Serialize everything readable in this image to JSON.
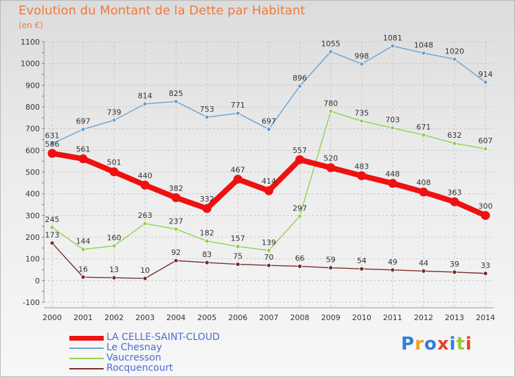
{
  "header": {
    "title": "Evolution du Montant de la Dette par Habitant",
    "subtitle": "(en €)"
  },
  "logo": {
    "text": "Proxiti",
    "colors": [
      "#2f7fd6",
      "#f0a21c",
      "#2f7fd6",
      "#e8402f",
      "#2f7fd6",
      "#9bc83c",
      "#e8402f"
    ]
  },
  "chart_data": {
    "type": "line",
    "x": [
      "2000",
      "2001",
      "2002",
      "2003",
      "2004",
      "2005",
      "2006",
      "2007",
      "2008",
      "2009",
      "2010",
      "2011",
      "2012",
      "2013",
      "2014"
    ],
    "ylim": [
      -100,
      1100
    ],
    "yticks": [
      -100,
      0,
      100,
      200,
      300,
      400,
      500,
      600,
      700,
      800,
      900,
      1000,
      1100
    ],
    "grid": true,
    "legend_position": "bottom-left",
    "series": [
      {
        "name": "Le Chesnay",
        "color": "#6aa0d2",
        "values": [
          631,
          697,
          739,
          814,
          825,
          753,
          771,
          697,
          896,
          1055,
          998,
          1081,
          1048,
          1020,
          914
        ],
        "labels": [
          "631",
          "697",
          "739",
          "814",
          "825",
          "753",
          "771",
          "697",
          "896",
          "1055",
          "998",
          "1081",
          "1048",
          "1020",
          "914"
        ]
      },
      {
        "name": "Vaucresson",
        "color": "#8fd14f",
        "values": [
          245,
          144,
          160,
          263,
          237,
          182,
          157,
          139,
          297,
          780,
          735,
          703,
          671,
          632,
          607
        ],
        "labels": [
          "245",
          "144",
          "160",
          "263",
          "237",
          "182",
          "157",
          "139",
          "297",
          "780",
          "735",
          "703",
          "671",
          "632",
          "607"
        ]
      },
      {
        "name": "Rocquencourt",
        "color": "#7a2a2a",
        "values": [
          173,
          16,
          13,
          10,
          92,
          83,
          75,
          70,
          66,
          59,
          54,
          49,
          44,
          39,
          33
        ],
        "labels": [
          "173",
          "16",
          "13",
          "10",
          "92",
          "83",
          "75",
          "70",
          "66",
          "59",
          "54",
          "49",
          "44",
          "39",
          "33"
        ]
      },
      {
        "name": "LA CELLE-SAINT-CLOUD",
        "color": "#ee1111",
        "highlight": true,
        "values": [
          586,
          561,
          501,
          440,
          382,
          332,
          467,
          414,
          557,
          520,
          483,
          448,
          408,
          363,
          300
        ],
        "labels": [
          "586",
          "561",
          "501",
          "440",
          "382",
          "332",
          "467",
          "414",
          "557",
          "520",
          "483",
          "448",
          "408",
          "363",
          "300"
        ]
      }
    ],
    "legend": [
      "LA CELLE-SAINT-CLOUD",
      "Le Chesnay",
      "Vaucresson",
      "Rocquencourt"
    ]
  }
}
